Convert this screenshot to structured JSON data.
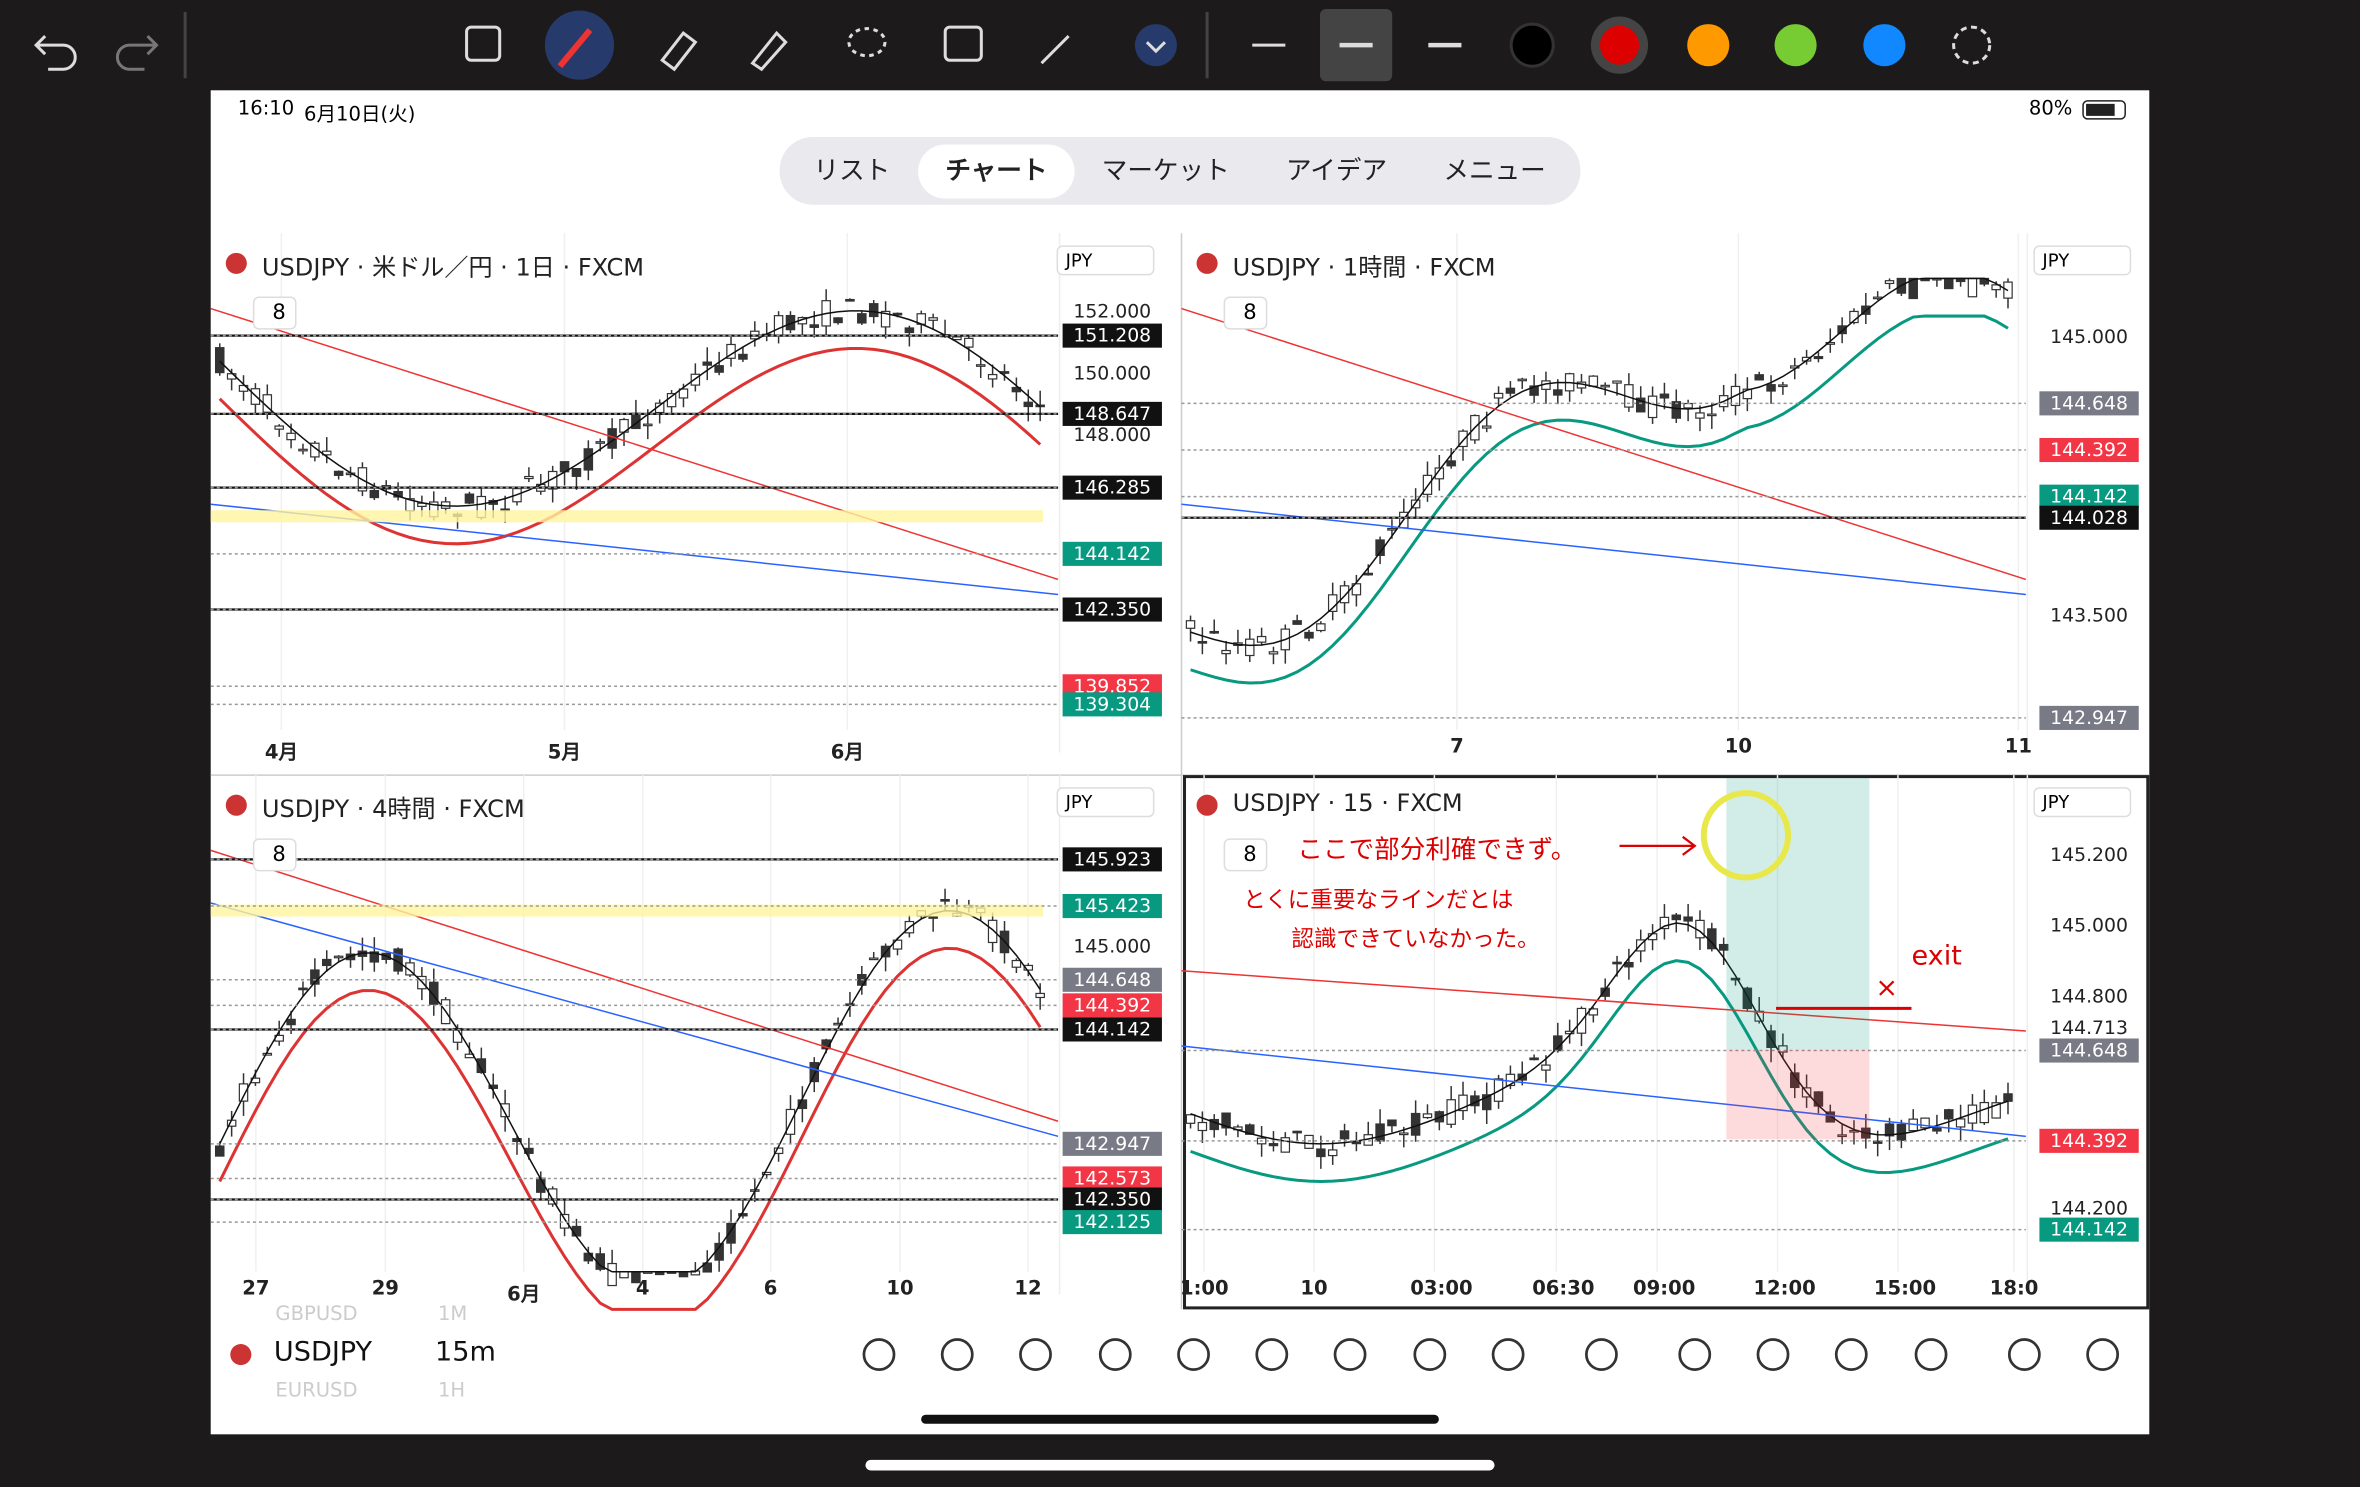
{
  "status": {
    "time": "16:10",
    "date": "6月10日(火)",
    "battery": "80%"
  },
  "tabs": {
    "items": [
      "リスト",
      "チャート",
      "マーケット",
      "アイデア",
      "メニュー"
    ],
    "active": 1
  },
  "panels": [
    {
      "title": "USDJPY · 米ドル／円 · 1日 · FXCM",
      "currency": "JPY",
      "legend_count": "8",
      "price_labels": [
        {
          "text": "152.000",
          "style": "plain"
        },
        {
          "text": "151.208",
          "style": "black"
        },
        {
          "text": "150.000",
          "style": "plain"
        },
        {
          "text": "148.647",
          "style": "black"
        },
        {
          "text": "148.000",
          "style": "plain"
        },
        {
          "text": "146.285",
          "style": "black"
        },
        {
          "text": "144.142",
          "style": "green"
        },
        {
          "text": "142.350",
          "style": "black"
        },
        {
          "text": "139.852",
          "style": "red"
        },
        {
          "text": "139.304",
          "style": "green"
        }
      ],
      "x_labels": [
        "4月",
        "5月",
        "6月"
      ]
    },
    {
      "title": "USDJPY · 1時間 · FXCM",
      "currency": "JPY",
      "legend_count": "8",
      "price_labels": [
        {
          "text": "145.000",
          "style": "plain"
        },
        {
          "text": "144.648",
          "style": "gray"
        },
        {
          "text": "144.392",
          "style": "red"
        },
        {
          "text": "144.142",
          "style": "green"
        },
        {
          "text": "144.028",
          "style": "black"
        },
        {
          "text": "143.500",
          "style": "plain"
        },
        {
          "text": "142.947",
          "style": "gray"
        }
      ],
      "x_labels": [
        "7",
        "10",
        "11"
      ]
    },
    {
      "title": "USDJPY · 4時間 · FXCM",
      "currency": "JPY",
      "legend_count": "8",
      "price_labels": [
        {
          "text": "145.923",
          "style": "black"
        },
        {
          "text": "145.423",
          "style": "green"
        },
        {
          "text": "145.000",
          "style": "plain"
        },
        {
          "text": "144.648",
          "style": "gray"
        },
        {
          "text": "144.392",
          "style": "red"
        },
        {
          "text": "144.142",
          "style": "black"
        },
        {
          "text": "142.947",
          "style": "gray"
        },
        {
          "text": "142.573",
          "style": "red"
        },
        {
          "text": "142.350",
          "style": "black"
        },
        {
          "text": "142.125",
          "style": "green"
        }
      ],
      "x_labels": [
        "27",
        "29",
        "6月",
        "4",
        "6",
        "10",
        "12"
      ]
    },
    {
      "title": "USDJPY · 15 · FXCM",
      "currency": "JPY",
      "legend_count": "8",
      "price_labels": [
        {
          "text": "145.200",
          "style": "plain"
        },
        {
          "text": "145.000",
          "style": "plain"
        },
        {
          "text": "144.800",
          "style": "plain"
        },
        {
          "text": "144.713",
          "style": "plain"
        },
        {
          "text": "144.648",
          "style": "gray"
        },
        {
          "text": "144.392",
          "style": "red"
        },
        {
          "text": "144.200",
          "style": "plain"
        },
        {
          "text": "144.142",
          "style": "green"
        }
      ],
      "x_labels": [
        "1:00",
        "10",
        "03:00",
        "06:30",
        "09:00",
        "12:00",
        "15:00",
        "18:0"
      ],
      "annotations": [
        "ここで部分利確できず。",
        "とくに重要なラインだとは",
        "認識できていなかった。",
        "exit",
        "×"
      ]
    }
  ],
  "bottom_bar": {
    "symbol": "USDJPY",
    "interval": "15m",
    "ghost": [
      "GBPUSD",
      "1M",
      "EURUSD",
      "1H"
    ]
  }
}
